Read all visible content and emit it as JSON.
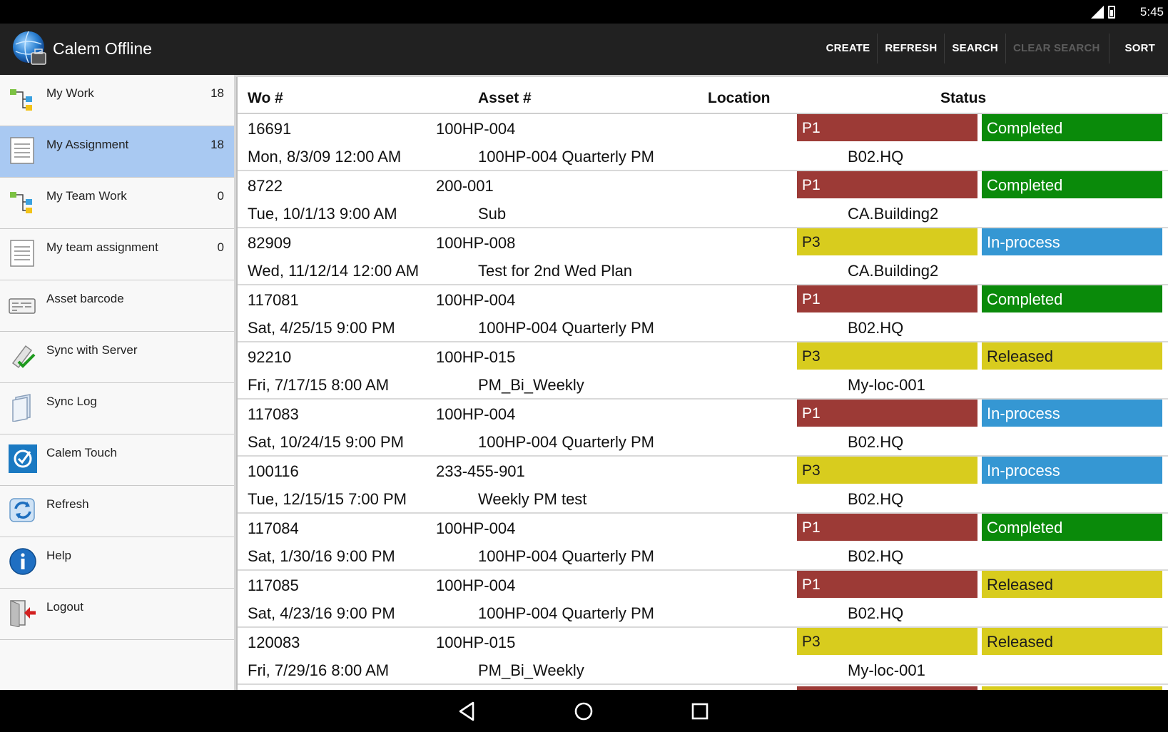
{
  "status_bar": {
    "time": "5:45"
  },
  "app": {
    "title": "Calem Offline",
    "actions": [
      {
        "label": "CREATE",
        "enabled": true
      },
      {
        "label": "REFRESH",
        "enabled": true
      },
      {
        "label": "SEARCH",
        "enabled": true
      },
      {
        "label": "CLEAR SEARCH",
        "enabled": false
      },
      {
        "label": "SORT",
        "enabled": true
      }
    ]
  },
  "sidebar": {
    "items": [
      {
        "label": "My Work",
        "count": "18",
        "icon": "tree-icon"
      },
      {
        "label": "My Assignment",
        "count": "18",
        "icon": "document-icon",
        "selected": true
      },
      {
        "label": "My Team Work",
        "count": "0",
        "icon": "tree-icon"
      },
      {
        "label": "My team assignment",
        "count": "0",
        "icon": "document-icon"
      },
      {
        "label": "Asset barcode",
        "count": "",
        "icon": "barcode-icon"
      },
      {
        "label": "Sync with Server",
        "count": "",
        "icon": "sync-check-icon"
      },
      {
        "label": "Sync Log",
        "count": "",
        "icon": "log-icon"
      },
      {
        "label": "Calem Touch",
        "count": "",
        "icon": "touch-icon"
      },
      {
        "label": "Refresh",
        "count": "",
        "icon": "refresh-icon"
      },
      {
        "label": "Help",
        "count": "",
        "icon": "info-icon"
      },
      {
        "label": "Logout",
        "count": "",
        "icon": "logout-icon"
      }
    ]
  },
  "table": {
    "headers": {
      "wo": "Wo #",
      "asset": "Asset #",
      "location": "Location",
      "status": "Status"
    },
    "rows": [
      {
        "wo": "16691",
        "asset": "100HP-004",
        "date": "Mon, 8/3/09 12:00 AM",
        "desc": "100HP-004 Quarterly PM",
        "priority": "P1",
        "status": "Completed",
        "location": "B02.HQ"
      },
      {
        "wo": "8722",
        "asset": "200-001",
        "date": "Tue, 10/1/13 9:00 AM",
        "desc": "Sub",
        "priority": "P1",
        "status": "Completed",
        "location": "CA.Building2"
      },
      {
        "wo": "82909",
        "asset": "100HP-008",
        "date": "Wed, 11/12/14 12:00 AM",
        "desc": "Test for 2nd Wed Plan",
        "priority": "P3",
        "status": "In-process",
        "location": "CA.Building2"
      },
      {
        "wo": "117081",
        "asset": "100HP-004",
        "date": "Sat, 4/25/15 9:00 PM",
        "desc": "100HP-004 Quarterly PM",
        "priority": "P1",
        "status": "Completed",
        "location": "B02.HQ"
      },
      {
        "wo": "92210",
        "asset": "100HP-015",
        "date": "Fri, 7/17/15 8:00 AM",
        "desc": "PM_Bi_Weekly",
        "priority": "P3",
        "status": "Released",
        "location": "My-loc-001"
      },
      {
        "wo": "117083",
        "asset": "100HP-004",
        "date": "Sat, 10/24/15 9:00 PM",
        "desc": "100HP-004 Quarterly PM",
        "priority": "P1",
        "status": "In-process",
        "location": "B02.HQ"
      },
      {
        "wo": "100116",
        "asset": "233-455-901",
        "date": "Tue, 12/15/15 7:00 PM",
        "desc": "Weekly PM test",
        "priority": "P3",
        "status": "In-process",
        "location": "B02.HQ"
      },
      {
        "wo": "117084",
        "asset": "100HP-004",
        "date": "Sat, 1/30/16 9:00 PM",
        "desc": "100HP-004 Quarterly PM",
        "priority": "P1",
        "status": "Completed",
        "location": "B02.HQ"
      },
      {
        "wo": "117085",
        "asset": "100HP-004",
        "date": "Sat, 4/23/16 9:00 PM",
        "desc": "100HP-004 Quarterly PM",
        "priority": "P1",
        "status": "Released",
        "location": "B02.HQ"
      },
      {
        "wo": "120083",
        "asset": "100HP-015",
        "date": "Fri, 7/29/16 8:00 AM",
        "desc": "PM_Bi_Weekly",
        "priority": "P3",
        "status": "Released",
        "location": "My-loc-001"
      }
    ]
  },
  "colors": {
    "P1": "#9c3a36",
    "P3": "#d8cc1e",
    "Completed": "#0a8a0a",
    "In-process": "#3597d3",
    "Released": "#d8cc1e",
    "selected_item": "#a9c9f2",
    "action_bar": "#212121"
  }
}
